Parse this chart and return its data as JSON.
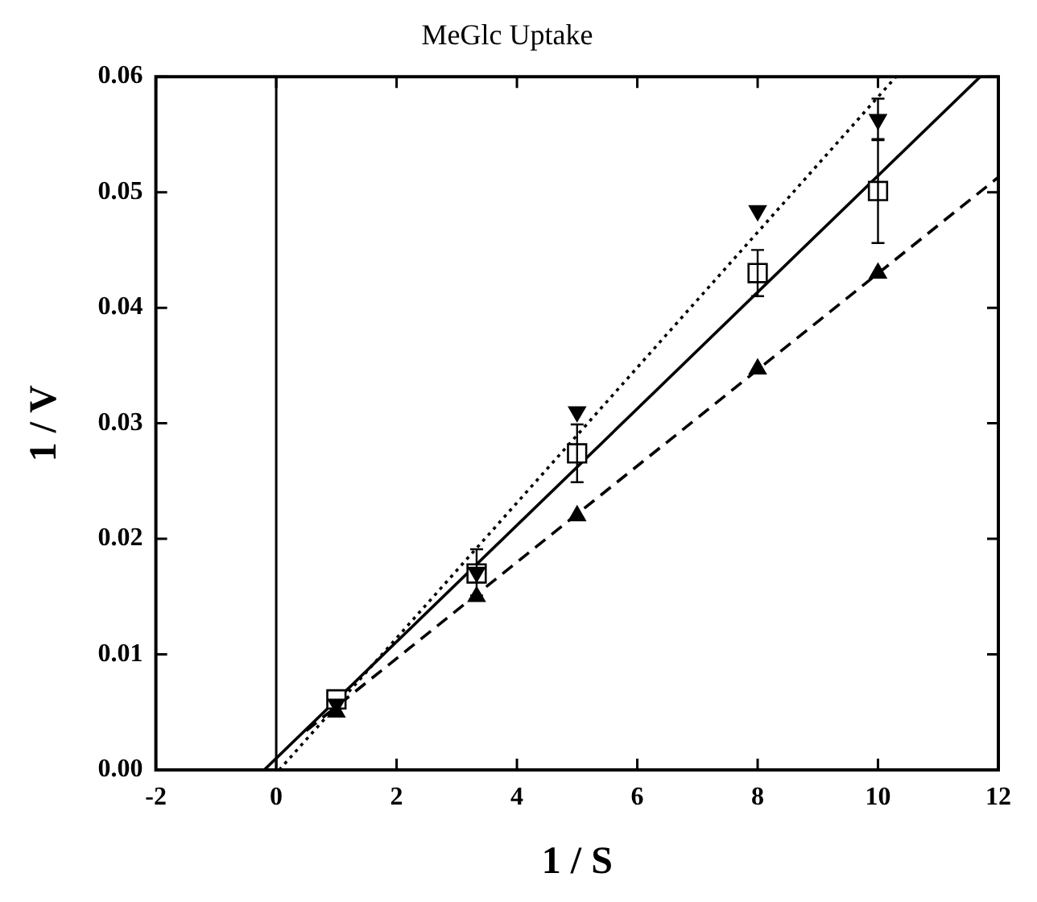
{
  "chart_data": {
    "type": "scatter",
    "title": "MeGlc Uptake",
    "xlabel": "1 / S",
    "ylabel": "1 / V",
    "xlim": [
      -2,
      12
    ],
    "xticks": [
      -2,
      0,
      2,
      4,
      6,
      8,
      10,
      12
    ],
    "ylim": [
      0,
      0.06
    ],
    "yticks": [
      {
        "value": 0,
        "label": "0.00"
      },
      {
        "value": 0.01,
        "label": "0.01"
      },
      {
        "value": 0.02,
        "label": "0.02"
      },
      {
        "value": 0.03,
        "label": "0.03"
      },
      {
        "value": 0.04,
        "label": "0.04"
      },
      {
        "value": 0.05,
        "label": "0.05"
      },
      {
        "value": 0.06,
        "label": "0.06"
      }
    ],
    "grid": false,
    "legend": false,
    "ref_lines": [
      {
        "axis": "x",
        "value": 0,
        "color": "#000000",
        "line_style": "solid"
      }
    ],
    "series": [
      {
        "type": "scatter",
        "color": "#000000",
        "marker": "square-open",
        "x": [
          1,
          3.33,
          5,
          8,
          10
        ],
        "values": [
          0.0061,
          0.017,
          0.0274,
          0.043,
          0.0501
        ],
        "errors": [
          null,
          null,
          0.0025,
          0.002,
          0.0045
        ]
      },
      {
        "type": "scatter",
        "color": "#000000",
        "marker": "triangle-down",
        "x": [
          1,
          3.33,
          5,
          8,
          10
        ],
        "values": [
          0.0057,
          0.0171,
          0.031,
          0.0484,
          0.0563
        ],
        "errors": [
          null,
          0.002,
          null,
          null,
          0.0018
        ]
      },
      {
        "type": "scatter",
        "color": "#000000",
        "marker": "triangle",
        "x": [
          1,
          3.33,
          5,
          8,
          10
        ],
        "values": [
          0.005,
          0.015,
          0.022,
          0.0347,
          0.043
        ]
      },
      {
        "type": "line",
        "color": "#000000",
        "marker": "none",
        "line_style": "solid",
        "x": [
          -0.2,
          11.7
        ],
        "values": [
          0,
          0.06
        ]
      },
      {
        "type": "line",
        "color": "#000000",
        "marker": "none",
        "line_style": "dotted",
        "x": [
          0.05,
          10.3
        ],
        "values": [
          0,
          0.06
        ]
      },
      {
        "type": "line",
        "color": "#000000",
        "marker": "none",
        "line_style": "dashed",
        "x": [
          0.5,
          12
        ],
        "values": [
          0.0034,
          0.0513
        ]
      }
    ]
  }
}
